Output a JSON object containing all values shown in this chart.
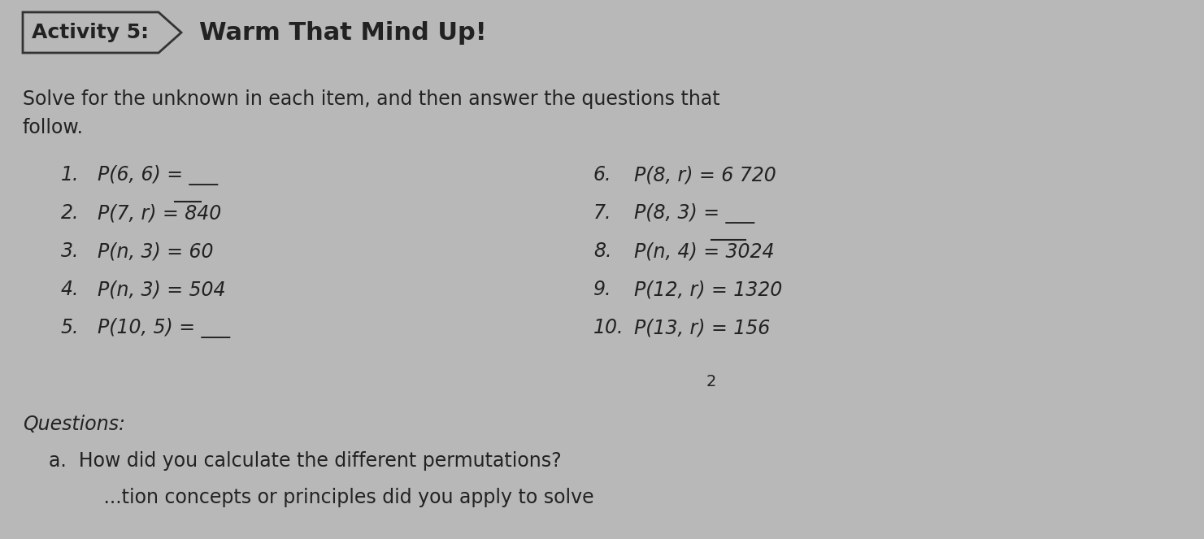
{
  "bg_color": "#b8b8b8",
  "text_color": "#222222",
  "title_box_text": "Activity 5:",
  "title_main": "Warm That Mind Up!",
  "intro_line1": "Solve for the unknown in each item, and then answer the questions that",
  "intro_line2": "follow.",
  "left_items": [
    {
      "num": "1.",
      "text": "P(6, 6) = ___",
      "blank_after_eq": true
    },
    {
      "num": "2.",
      "text": "P(7, r) = 840",
      "overline_word": "840"
    },
    {
      "num": "3.",
      "text": "P(n, 3) = 60"
    },
    {
      "num": "4.",
      "text": "P(n, 3) = 504"
    },
    {
      "num": "5.",
      "text": "P(10, 5) = ___",
      "blank_after_eq": true
    }
  ],
  "right_items": [
    {
      "num": "6.",
      "text": "P(8, r) = 6 720"
    },
    {
      "num": "7.",
      "text": "P(8, 3) = ___",
      "blank_after_eq": true
    },
    {
      "num": "8.",
      "text": "P(n, 4) = 3024",
      "overline_word": "3024"
    },
    {
      "num": "9.",
      "text": "P(12, r) = 1320"
    },
    {
      "num": "10.",
      "text": "P(13, r) = 156"
    }
  ],
  "page_num": "2",
  "questions_label": "Questions:",
  "question_a": "a.  How did you calculate the different permutations?",
  "question_b_partial": "         ...tion concepts or principles did you apply to solve"
}
